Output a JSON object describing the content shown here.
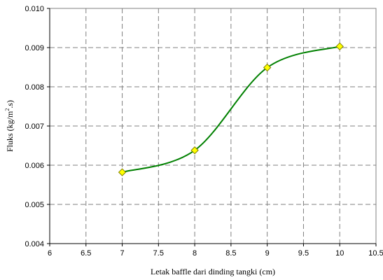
{
  "chart_data": {
    "type": "scatter",
    "title": "",
    "xlabel": "Letak baffle dari dinding tangki (cm)",
    "ylabel_parts": [
      "Fluks (kg/m",
      "2",
      ".s)"
    ],
    "xlim": [
      6,
      10.5
    ],
    "ylim": [
      0.004,
      0.01
    ],
    "x_ticks": [
      6,
      6.5,
      7,
      7.5,
      8,
      8.5,
      9,
      9.5,
      10,
      10.5
    ],
    "x_tick_labels": [
      "6",
      "6.5",
      "7",
      "7.5",
      "8",
      "8.5",
      "9",
      "9.5",
      "10",
      "10.5"
    ],
    "y_ticks": [
      0.004,
      0.005,
      0.006,
      0.007,
      0.008,
      0.009,
      0.01
    ],
    "y_tick_labels": [
      "0.004",
      "0.005",
      "0.006",
      "0.007",
      "0.008",
      "0.009",
      "0.010"
    ],
    "grid": true,
    "legend": "none",
    "smoothed_line": true,
    "series": [
      {
        "x": [
          7,
          8,
          9,
          10
        ],
        "y": [
          0.00582,
          0.00638,
          0.00849,
          0.00903
        ],
        "line_color": "#008000",
        "marker": "diamond",
        "marker_fill": "#ffff00",
        "marker_edge": "#808000"
      }
    ]
  }
}
